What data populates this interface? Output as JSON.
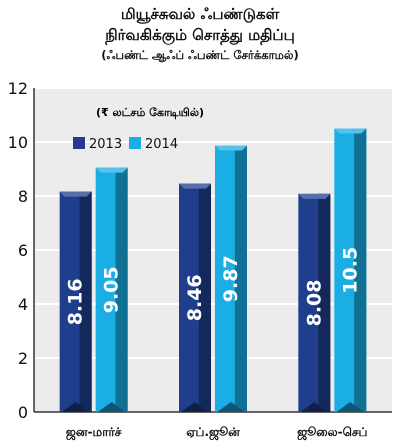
{
  "title_lines": [
    "மியூச்சுவல் ஃபண்டுகள்",
    "நிர்வகிக்கும் சொத்து மதிப்பு"
  ],
  "subtitle": "(ஃபண்ட் ஆஃப் ஃபண்ட் சேர்க்காமல்)",
  "unit_note": "(₹ லட்சம் கோடியில்)",
  "colors": {
    "2013": "#1f3f8c",
    "2014": "#1aaee5",
    "plot_bg": "#ececec",
    "grid": "#ffffff"
  },
  "chart_data": {
    "type": "bar",
    "categories": [
      "ஜன-மார்ச்",
      "ஏப்.ஜூன்",
      "ஜூலை-செப்"
    ],
    "series": [
      {
        "name": "2013",
        "values": [
          8.16,
          8.46,
          8.08
        ],
        "labels": [
          "8.16",
          "8.46",
          "8.08"
        ]
      },
      {
        "name": "2014",
        "values": [
          9.05,
          9.87,
          10.5
        ],
        "labels": [
          "9.05",
          "9.87",
          "10.5"
        ]
      }
    ],
    "ylim": [
      0,
      12
    ],
    "yticks": [
      "0",
      "2",
      "4",
      "6",
      "8",
      "10",
      "12"
    ],
    "grid": true,
    "legend_position": "top-left"
  }
}
